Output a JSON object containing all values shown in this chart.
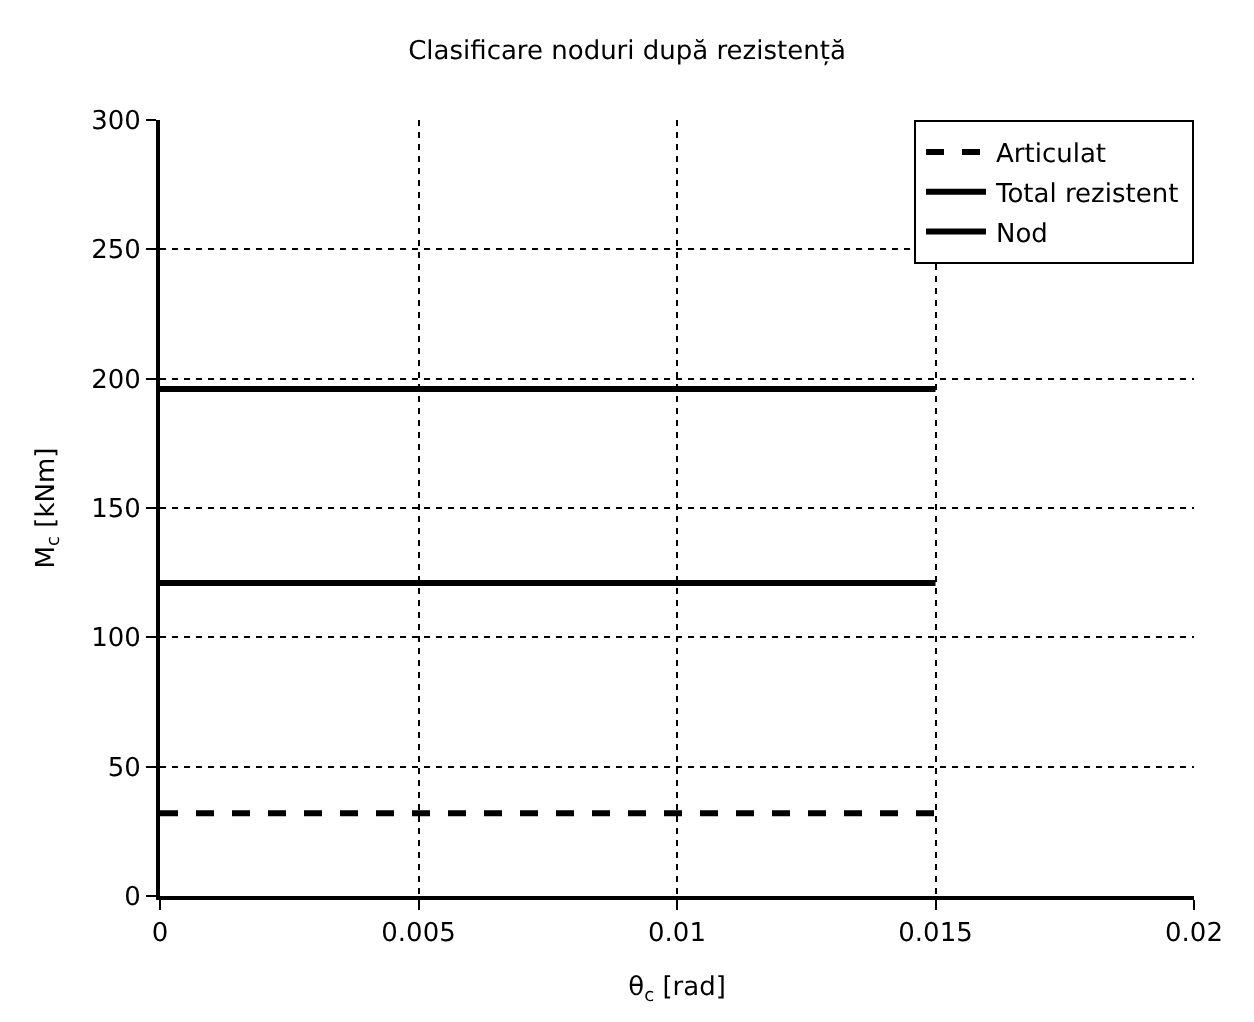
{
  "chart_data": {
    "type": "line",
    "title": "Clasificare noduri după rezistență",
    "xlabel": "θ$_{c}$ [rad]",
    "ylabel": "M$_{c}$ [kNm]",
    "x": [
      0,
      0.015
    ],
    "series": [
      {
        "name": "Articulat",
        "color": "#000000",
        "values": [
          32,
          32
        ],
        "line_style": "dashed"
      },
      {
        "name": "Total rezistent",
        "color": "#000000",
        "values": [
          121,
          121
        ],
        "line_style": "solid"
      },
      {
        "name": "Nod",
        "color": "#000000",
        "values": [
          196,
          196
        ],
        "line_style": "solid"
      }
    ],
    "xlim": [
      0,
      0.02
    ],
    "xticks": [
      0,
      0.005,
      0.01,
      0.015,
      0.02
    ],
    "ylim": [
      0,
      300
    ],
    "yticks": [
      0,
      50,
      100,
      150,
      200,
      250,
      300
    ],
    "grid": true,
    "legend": "top right",
    "marker": "none"
  }
}
